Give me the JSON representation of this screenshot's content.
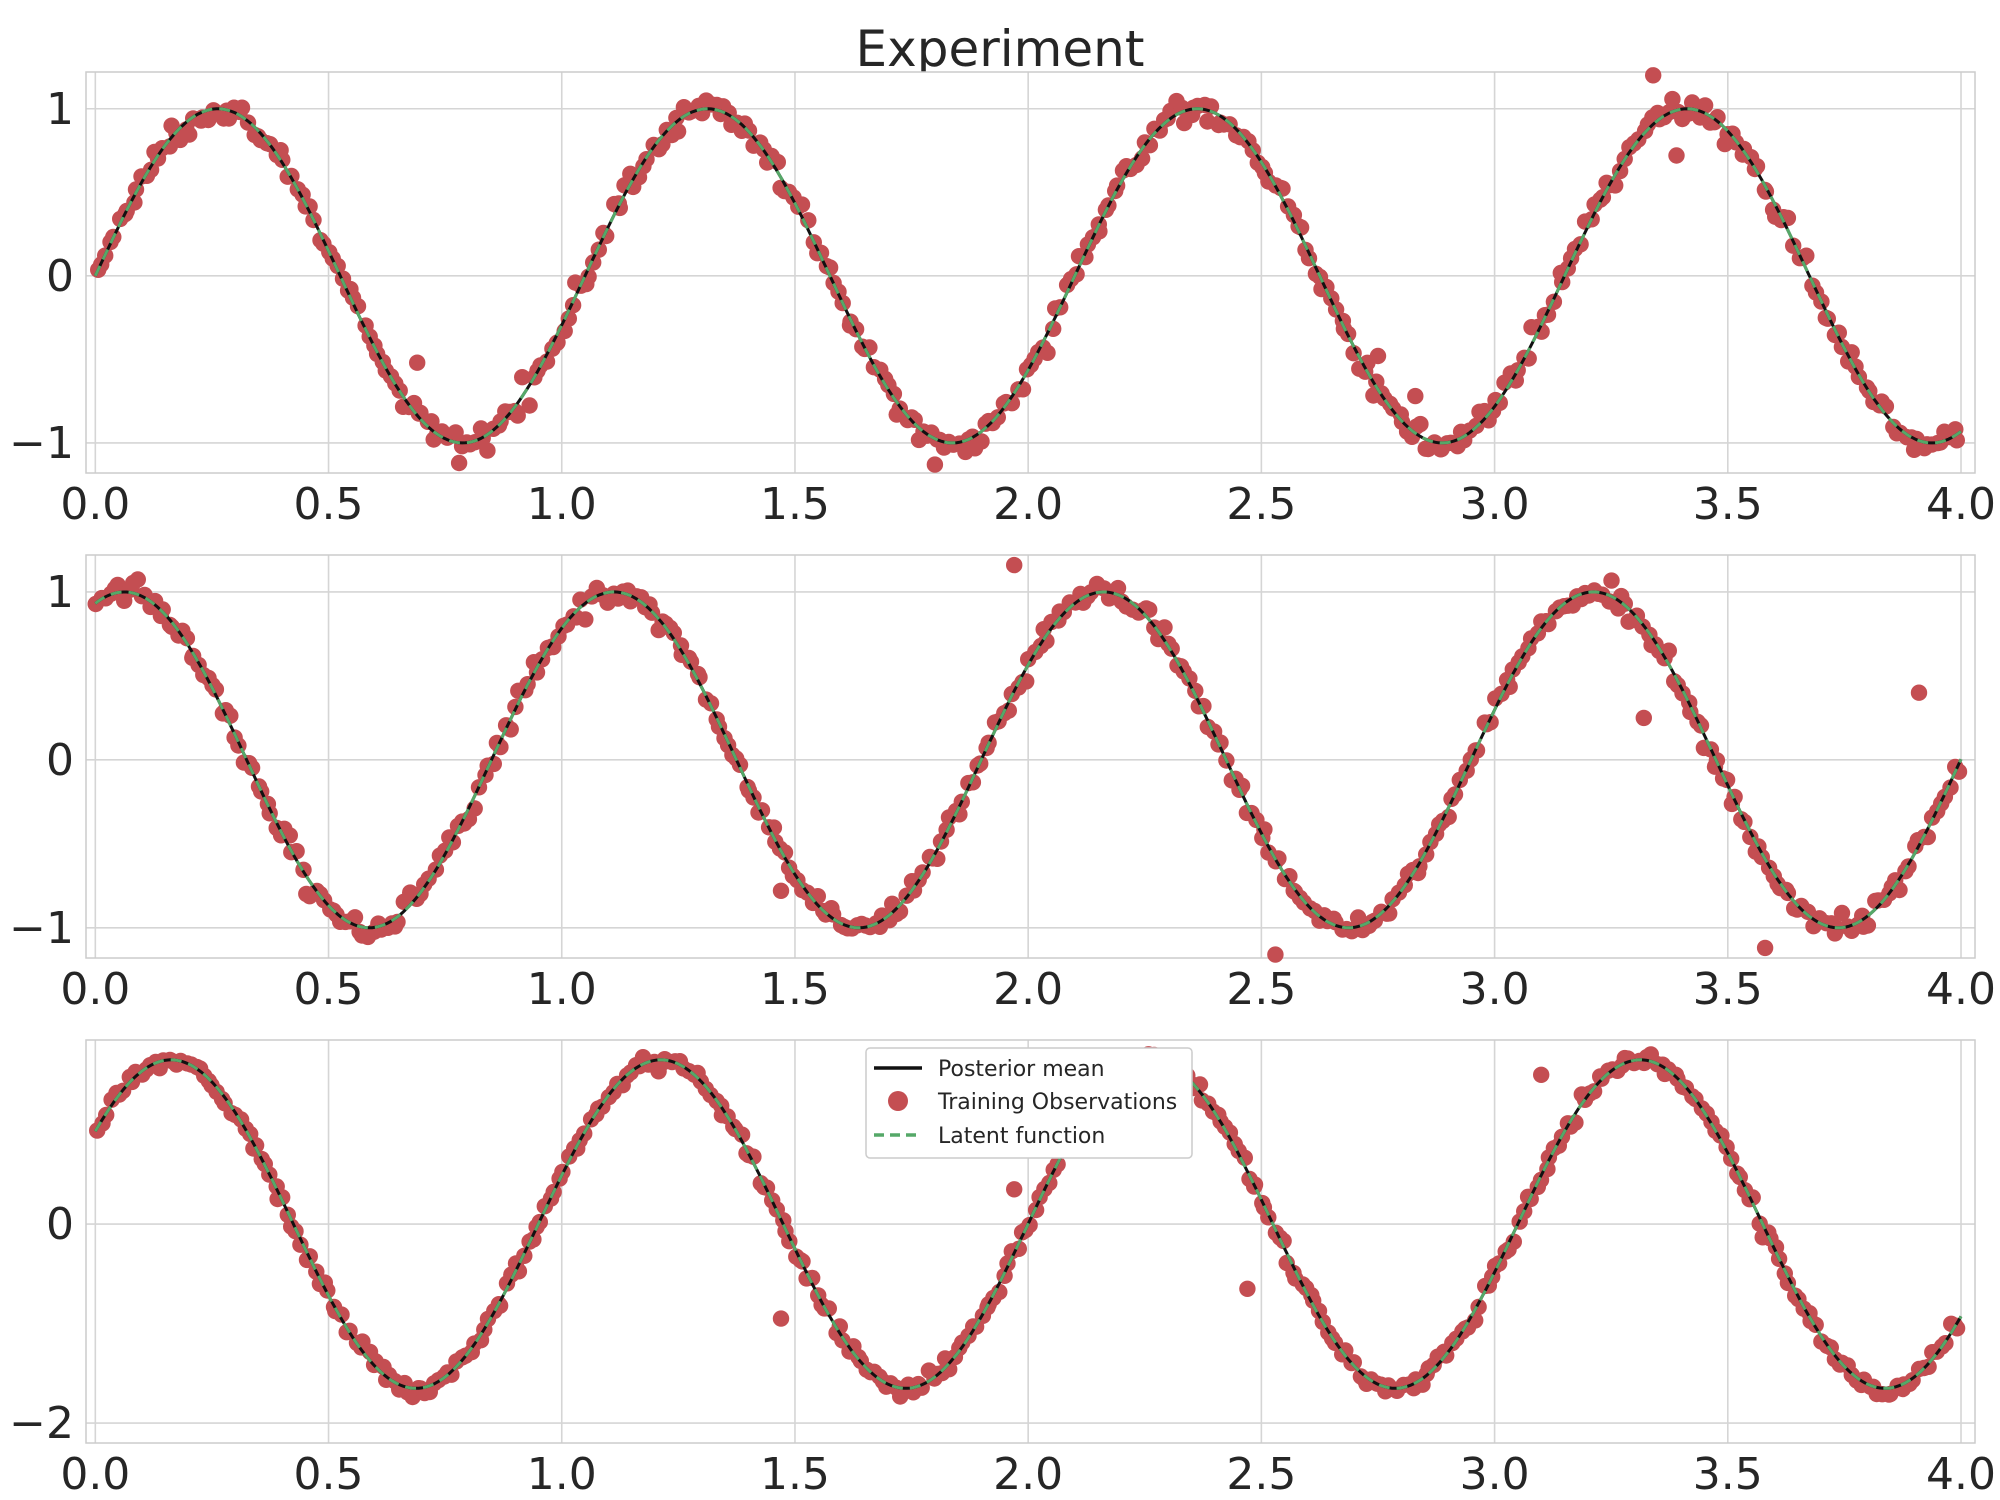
{
  "chart_data": [
    {
      "type": "scatter",
      "title": "Experiment",
      "xlabel": "",
      "ylabel": "",
      "xlim": [
        -0.02,
        4.03
      ],
      "ylim": [
        -1.18,
        1.22
      ],
      "xticks": [
        0.0,
        0.5,
        1.0,
        1.5,
        2.0,
        2.5,
        3.0,
        3.5,
        4.0
      ],
      "xtick_labels": [
        "0.0",
        "0.5",
        "1.0",
        "1.5",
        "2.0",
        "2.5",
        "3.0",
        "3.5",
        "4.0"
      ],
      "yticks": [
        -1,
        0,
        1
      ],
      "ytick_labels": [
        "−1",
        "0",
        "1"
      ],
      "grid": true,
      "series": [
        {
          "role": "latent",
          "color": "#55a868",
          "style": "dashed",
          "period": 1.05,
          "phase": 0.0,
          "amplitude": 1.0,
          "x_range": [
            0.0,
            4.0
          ]
        },
        {
          "role": "mean",
          "color": "#111111",
          "style": "solid"
        },
        {
          "role": "observations",
          "color": "#c44e52",
          "n": 420,
          "noise_std": 0.035
        }
      ],
      "outliers": [
        [
          0.69,
          -0.52
        ],
        [
          0.78,
          -1.12
        ],
        [
          1.8,
          -1.13
        ],
        [
          2.75,
          -0.48
        ],
        [
          2.83,
          -0.72
        ],
        [
          3.34,
          1.2
        ],
        [
          3.39,
          0.72
        ]
      ]
    },
    {
      "type": "scatter",
      "title": "",
      "xlabel": "",
      "ylabel": "",
      "xlim": [
        -0.02,
        4.03
      ],
      "ylim": [
        -1.18,
        1.22
      ],
      "xticks": [
        0.0,
        0.5,
        1.0,
        1.5,
        2.0,
        2.5,
        3.0,
        3.5,
        4.0
      ],
      "xtick_labels": [
        "0.0",
        "0.5",
        "1.0",
        "1.5",
        "2.0",
        "2.5",
        "3.0",
        "3.5",
        "4.0"
      ],
      "yticks": [
        -1,
        0,
        1
      ],
      "ytick_labels": [
        "−1",
        "0",
        "1"
      ],
      "grid": true,
      "series": [
        {
          "role": "latent",
          "color": "#55a868",
          "style": "dashed",
          "period": 1.05,
          "phase": 1.2,
          "amplitude": 1.0,
          "x_range": [
            0.0,
            4.0
          ]
        },
        {
          "role": "mean",
          "color": "#111111",
          "style": "solid"
        },
        {
          "role": "observations",
          "color": "#c44e52",
          "n": 420,
          "noise_std": 0.035
        }
      ],
      "outliers": [
        [
          1.47,
          -0.78
        ],
        [
          1.97,
          1.16
        ],
        [
          2.53,
          -1.16
        ],
        [
          3.32,
          0.25
        ],
        [
          3.58,
          -1.12
        ],
        [
          3.91,
          0.4
        ]
      ]
    },
    {
      "type": "scatter",
      "title": "",
      "xlabel": "",
      "ylabel": "",
      "xlim": [
        -0.02,
        4.03
      ],
      "ylim": [
        -2.2,
        1.85
      ],
      "xticks": [
        0.0,
        0.5,
        1.0,
        1.5,
        2.0,
        2.5,
        3.0,
        3.5,
        4.0
      ],
      "xtick_labels": [
        "0.0",
        "0.5",
        "1.0",
        "1.5",
        "2.0",
        "2.5",
        "3.0",
        "3.5",
        "4.0"
      ],
      "yticks": [
        -2,
        0
      ],
      "ytick_labels": [
        "−2",
        "0"
      ],
      "grid": true,
      "series": [
        {
          "role": "latent",
          "color": "#55a868",
          "style": "dashed",
          "components": [
            {
              "period": 1.05,
              "phase": 0.0,
              "amplitude": 1.0
            },
            {
              "period": 1.05,
              "phase": 1.2,
              "amplitude": 1.0
            }
          ],
          "x_range": [
            0.0,
            4.0
          ]
        },
        {
          "role": "mean",
          "color": "#111111",
          "style": "solid"
        },
        {
          "role": "observations",
          "color": "#c44e52",
          "n": 420,
          "noise_std": 0.04
        }
      ],
      "outliers": [
        [
          1.47,
          -0.95
        ],
        [
          1.97,
          0.35
        ],
        [
          2.47,
          -0.65
        ],
        [
          3.1,
          1.5
        ]
      ]
    }
  ],
  "legend": {
    "placement": "upper-center of third panel",
    "entries": [
      "Posterior mean",
      "Training Observations",
      "Latent function"
    ]
  }
}
